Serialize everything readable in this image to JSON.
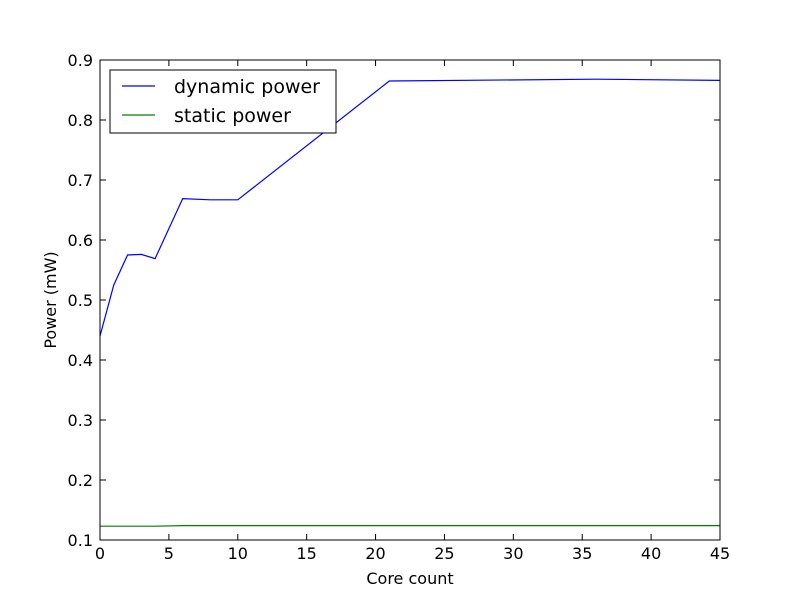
{
  "chart_data": {
    "type": "line",
    "title": "",
    "xlabel": "Core count",
    "ylabel": "Power (mW)",
    "xlim": [
      0,
      45
    ],
    "ylim": [
      0.1,
      0.9
    ],
    "xticks": [
      0,
      5,
      10,
      15,
      20,
      25,
      30,
      35,
      40,
      45
    ],
    "yticks": [
      0.1,
      0.2,
      0.3,
      0.4,
      0.5,
      0.6,
      0.7,
      0.8,
      0.9
    ],
    "xtick_labels": [
      "0",
      "5",
      "10",
      "15",
      "20",
      "25",
      "30",
      "35",
      "40",
      "45"
    ],
    "ytick_labels": [
      "0.1",
      "0.2",
      "0.3",
      "0.4",
      "0.5",
      "0.6",
      "0.7",
      "0.8",
      "0.9"
    ],
    "grid": false,
    "legend_position": "top-left",
    "series": [
      {
        "name": "dynamic power",
        "color": "#0000ff",
        "x": [
          0,
          1,
          2,
          3,
          4,
          6,
          8,
          10,
          21,
          36,
          45
        ],
        "y": [
          0.44,
          0.525,
          0.575,
          0.576,
          0.569,
          0.669,
          0.667,
          0.667,
          0.865,
          0.868,
          0.866
        ]
      },
      {
        "name": "static power",
        "color": "#008000",
        "x": [
          0,
          4,
          6,
          10,
          21,
          36,
          45
        ],
        "y": [
          0.123,
          0.123,
          0.124,
          0.124,
          0.124,
          0.124,
          0.124
        ]
      }
    ]
  }
}
